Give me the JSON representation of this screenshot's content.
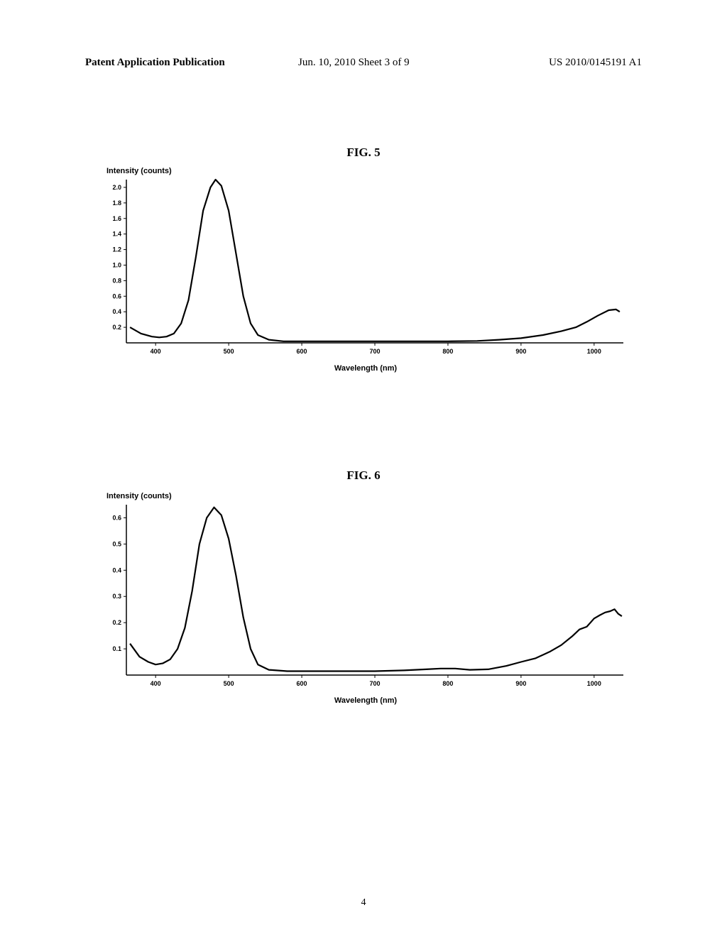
{
  "header": {
    "left": "Patent Application Publication",
    "center": "Jun. 10, 2010  Sheet 3 of 9",
    "right": "US 2010/0145191 A1"
  },
  "fig5": {
    "title": "FIG. 5",
    "type": "line",
    "ylabel": "Intensity (counts)",
    "xlabel": "Wavelength (nm)",
    "xlim": [
      360,
      1040
    ],
    "ylim": [
      0,
      2.1
    ],
    "x_ticks": [
      400,
      500,
      600,
      700,
      800,
      900,
      1000
    ],
    "y_ticks": [
      0.2,
      0.4,
      0.6,
      0.8,
      1.0,
      1.2,
      1.4,
      1.6,
      1.8,
      2.0
    ],
    "line_color": "#000000",
    "line_width": 2.2,
    "background_color": "#ffffff",
    "axis_color": "#000000",
    "tick_fontsize": 9,
    "data": [
      [
        365,
        0.2
      ],
      [
        380,
        0.12
      ],
      [
        395,
        0.08
      ],
      [
        405,
        0.07
      ],
      [
        415,
        0.08
      ],
      [
        425,
        0.12
      ],
      [
        435,
        0.25
      ],
      [
        445,
        0.55
      ],
      [
        455,
        1.1
      ],
      [
        465,
        1.7
      ],
      [
        475,
        2.0
      ],
      [
        482,
        2.1
      ],
      [
        490,
        2.02
      ],
      [
        500,
        1.7
      ],
      [
        510,
        1.15
      ],
      [
        520,
        0.6
      ],
      [
        530,
        0.25
      ],
      [
        540,
        0.1
      ],
      [
        555,
        0.04
      ],
      [
        575,
        0.02
      ],
      [
        600,
        0.02
      ],
      [
        650,
        0.02
      ],
      [
        700,
        0.02
      ],
      [
        750,
        0.02
      ],
      [
        800,
        0.02
      ],
      [
        840,
        0.025
      ],
      [
        870,
        0.04
      ],
      [
        900,
        0.06
      ],
      [
        930,
        0.1
      ],
      [
        955,
        0.15
      ],
      [
        975,
        0.2
      ],
      [
        990,
        0.27
      ],
      [
        1005,
        0.35
      ],
      [
        1020,
        0.42
      ],
      [
        1030,
        0.43
      ],
      [
        1035,
        0.4
      ]
    ]
  },
  "fig6": {
    "title": "FIG. 6",
    "type": "line",
    "ylabel": "Intensity (counts)",
    "xlabel": "Wavelength (nm)",
    "xlim": [
      360,
      1040
    ],
    "ylim": [
      0,
      0.65
    ],
    "x_ticks": [
      400,
      500,
      600,
      700,
      800,
      900,
      1000
    ],
    "y_ticks": [
      0.1,
      0.2,
      0.3,
      0.4,
      0.5,
      0.6
    ],
    "line_color": "#000000",
    "line_width": 2.2,
    "background_color": "#ffffff",
    "axis_color": "#000000",
    "tick_fontsize": 9,
    "data": [
      [
        365,
        0.12
      ],
      [
        378,
        0.07
      ],
      [
        390,
        0.05
      ],
      [
        400,
        0.04
      ],
      [
        410,
        0.045
      ],
      [
        420,
        0.06
      ],
      [
        430,
        0.1
      ],
      [
        440,
        0.18
      ],
      [
        450,
        0.32
      ],
      [
        460,
        0.5
      ],
      [
        470,
        0.6
      ],
      [
        480,
        0.64
      ],
      [
        490,
        0.61
      ],
      [
        500,
        0.52
      ],
      [
        510,
        0.38
      ],
      [
        520,
        0.22
      ],
      [
        530,
        0.1
      ],
      [
        540,
        0.04
      ],
      [
        555,
        0.02
      ],
      [
        580,
        0.015
      ],
      [
        620,
        0.015
      ],
      [
        660,
        0.015
      ],
      [
        700,
        0.015
      ],
      [
        740,
        0.018
      ],
      [
        770,
        0.022
      ],
      [
        790,
        0.025
      ],
      [
        810,
        0.025
      ],
      [
        830,
        0.02
      ],
      [
        855,
        0.022
      ],
      [
        880,
        0.035
      ],
      [
        900,
        0.05
      ],
      [
        920,
        0.07
      ],
      [
        940,
        0.095
      ],
      [
        955,
        0.12
      ],
      [
        970,
        0.15
      ],
      [
        980,
        0.17
      ],
      [
        990,
        0.19
      ],
      [
        1000,
        0.21
      ],
      [
        1008,
        0.225
      ],
      [
        1015,
        0.235
      ],
      [
        1022,
        0.24
      ],
      [
        1028,
        0.245
      ],
      [
        1033,
        0.235
      ],
      [
        1038,
        0.23
      ]
    ],
    "noise_amp": 0.006
  },
  "page_number": "4"
}
